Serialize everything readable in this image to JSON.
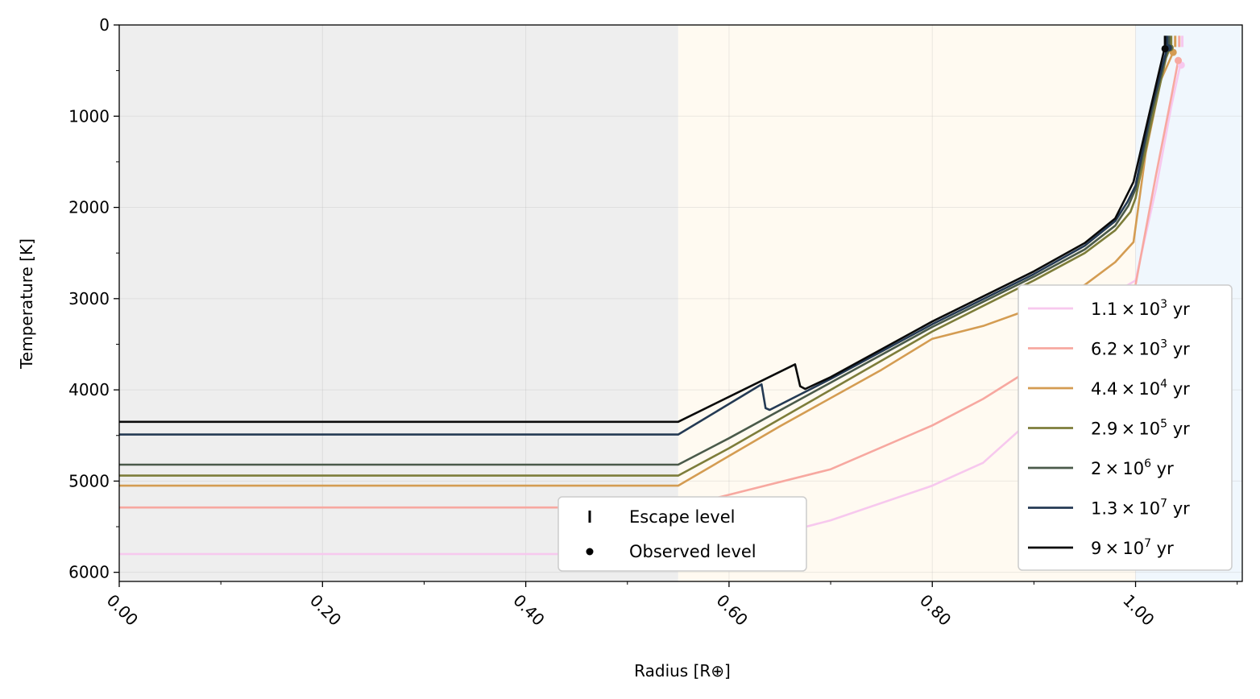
{
  "chart_data": {
    "type": "line",
    "xlabel": "Radius [R⊕]",
    "ylabel": "Temperature [K]",
    "xlim": [
      0.0,
      1.105
    ],
    "ylim": [
      6100,
      0
    ],
    "y_inverted": true,
    "xticks": [
      0.0,
      0.2,
      0.4,
      0.6,
      0.8,
      1.0
    ],
    "xtick_labels": [
      "0.00",
      "0.20",
      "0.40",
      "0.60",
      "0.80",
      "1.00"
    ],
    "yticks": [
      0,
      1000,
      2000,
      3000,
      4000,
      5000,
      6000
    ],
    "ytick_labels": [
      "0",
      "1000",
      "2000",
      "3000",
      "4000",
      "5000",
      "6000"
    ],
    "grid": true,
    "regions": [
      {
        "x": [
          0.0,
          0.55
        ],
        "color": "#eeeeee"
      },
      {
        "x": [
          0.55,
          1.0
        ],
        "color": "#fffaf1"
      },
      {
        "x": [
          1.0,
          1.105
        ],
        "color": "#f0f7fd"
      }
    ],
    "series": [
      {
        "name_base": "1.1",
        "name_exp": "3",
        "color": "#f7c8ee",
        "x": [
          0.0,
          0.55,
          0.6,
          0.7,
          0.8,
          0.85,
          0.9,
          0.93,
          0.95,
          0.97,
          1.0,
          1.02,
          1.035,
          1.044
        ],
        "y": [
          5800,
          5800,
          5720,
          5430,
          5050,
          4800,
          4300,
          3900,
          3400,
          3000,
          2800,
          1800,
          900,
          440
        ]
      },
      {
        "name_base": "6.2",
        "name_exp": "3",
        "color": "#f7a8a0",
        "x": [
          0.0,
          0.55,
          0.6,
          0.7,
          0.8,
          0.85,
          0.9,
          0.95,
          0.98,
          1.0,
          1.02,
          1.035,
          1.042
        ],
        "y": [
          5290,
          5290,
          5150,
          4870,
          4390,
          4100,
          3750,
          3350,
          3050,
          2850,
          1650,
          800,
          390
        ]
      },
      {
        "name_base": "4.4",
        "name_exp": "4",
        "color": "#d49c52",
        "x": [
          0.0,
          0.55,
          0.65,
          0.75,
          0.8,
          0.85,
          0.9,
          0.95,
          0.98,
          0.998,
          1.01,
          1.025,
          1.037
        ],
        "y": [
          5050,
          5050,
          4400,
          3780,
          3440,
          3300,
          3100,
          2850,
          2600,
          2380,
          1400,
          600,
          300
        ]
      },
      {
        "name_base": "2.9",
        "name_exp": "5",
        "color": "#7d7d3a",
        "x": [
          0.0,
          0.55,
          0.6,
          0.7,
          0.8,
          0.9,
          0.95,
          0.98,
          0.995,
          1.0,
          1.015,
          1.03,
          1.034
        ],
        "y": [
          4940,
          4940,
          4640,
          4000,
          3360,
          2800,
          2500,
          2250,
          2050,
          1900,
          1100,
          360,
          250
        ]
      },
      {
        "name_base": "2",
        "name_exp": "6",
        "color": "#4a5a4a",
        "x": [
          0.0,
          0.55,
          0.6,
          0.7,
          0.8,
          0.9,
          0.95,
          0.98,
          0.993,
          1.0,
          1.015,
          1.03,
          1.033
        ],
        "y": [
          4820,
          4820,
          4530,
          3920,
          3310,
          2760,
          2460,
          2200,
          1980,
          1800,
          1000,
          330,
          250
        ]
      },
      {
        "name_base": "1.3",
        "name_exp": "7",
        "color": "#243a54",
        "x": [
          0.0,
          0.55,
          0.632,
          0.636,
          0.64,
          0.7,
          0.8,
          0.9,
          0.95,
          0.98,
          0.992,
          1.0,
          1.015,
          1.03,
          1.032
        ],
        "y": [
          4490,
          4490,
          3940,
          4200,
          4220,
          3880,
          3280,
          2730,
          2420,
          2150,
          1940,
          1760,
          940,
          300,
          250
        ]
      },
      {
        "name_base": "9",
        "name_exp": "7",
        "color": "#0a0a0a",
        "x": [
          0.0,
          0.55,
          0.665,
          0.67,
          0.675,
          0.7,
          0.8,
          0.9,
          0.95,
          0.98,
          0.99,
          0.998,
          1.015,
          1.028,
          1.03
        ],
        "y": [
          4350,
          4350,
          3720,
          3960,
          3990,
          3860,
          3250,
          2700,
          2390,
          2120,
          1900,
          1720,
          900,
          280,
          250
        ]
      }
    ],
    "markers": {
      "escape": [
        {
          "x": 1.046,
          "y": 180,
          "color": "#f7c8ee"
        },
        {
          "x": 1.043,
          "y": 180,
          "color": "#f7a8a0"
        },
        {
          "x": 1.039,
          "y": 180,
          "color": "#d49c52"
        },
        {
          "x": 1.035,
          "y": 180,
          "color": "#7d7d3a"
        },
        {
          "x": 1.033,
          "y": 180,
          "color": "#4a5a4a"
        },
        {
          "x": 1.031,
          "y": 180,
          "color": "#243a54"
        },
        {
          "x": 1.029,
          "y": 180,
          "color": "#0a0a0a"
        }
      ],
      "observed": [
        {
          "x": 1.045,
          "y": 440,
          "color": "#f7c8ee"
        },
        {
          "x": 1.042,
          "y": 390,
          "color": "#f7a8a0"
        },
        {
          "x": 1.037,
          "y": 300,
          "color": "#d49c52"
        },
        {
          "x": 1.034,
          "y": 250,
          "color": "#7d7d3a"
        },
        {
          "x": 1.033,
          "y": 250,
          "color": "#4a5a4a"
        },
        {
          "x": 1.032,
          "y": 250,
          "color": "#243a54"
        },
        {
          "x": 1.029,
          "y": 260,
          "color": "#0a0a0a"
        }
      ]
    },
    "legend_series_unit": "yr",
    "legend_markers": [
      "Escape level",
      "Observed level"
    ],
    "legend_series_location": "center right",
    "legend_markers_location": "lower center"
  }
}
